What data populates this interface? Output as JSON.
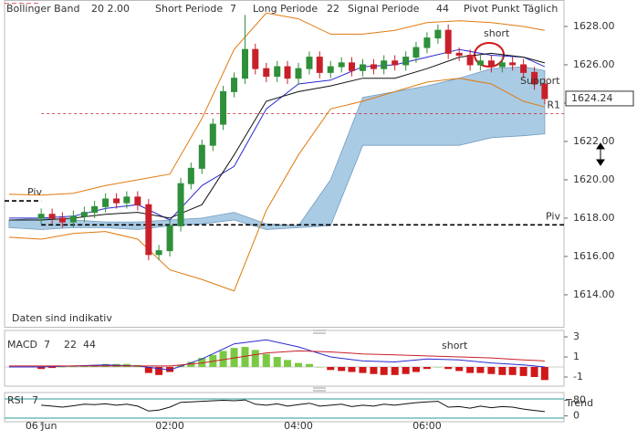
{
  "chart_data": [
    {
      "type": "candlestick",
      "indicators": [
        {
          "name": "Bollinger Band",
          "settings": "20  2.00",
          "color": "#e07a10"
        },
        {
          "name": "Short Periode",
          "settings": "7",
          "color": "#555555"
        },
        {
          "name": "Long Periode",
          "settings": "22",
          "color": "#555555"
        },
        {
          "name": "Signal Periode",
          "settings": "44",
          "color": "#555555"
        },
        {
          "name": "Pivot Punkt Täglich",
          "color": "#555555"
        }
      ],
      "note": "Daten sind indikativ",
      "annotations": [
        "short",
        "Support"
      ],
      "up_color": "#2f8f3a",
      "down_color": "#c8202a",
      "xlim": [
        -0.57,
        8.13
      ],
      "xticks": [
        {
          "value": 0,
          "label": "06 Jun"
        },
        {
          "value": 2,
          "label": "02:00"
        },
        {
          "value": 4,
          "label": "04:00"
        },
        {
          "value": 6,
          "label": "06:00"
        }
      ],
      "ylim": [
        1612.33,
        1629.38
      ],
      "yticks": [
        {
          "value": 1614,
          "label": "1614.00"
        },
        {
          "value": 1616,
          "label": "1616.00"
        },
        {
          "value": 1618,
          "label": "1618.00"
        },
        {
          "value": 1620,
          "label": "1620.00"
        },
        {
          "value": 1622,
          "label": "1622.00"
        },
        {
          "value": 1624,
          "label": "1624.00"
        },
        {
          "value": 1626,
          "label": "1626.00"
        },
        {
          "value": 1628,
          "label": "1628.00"
        }
      ],
      "x": [
        0,
        0.17,
        0.33,
        0.5,
        0.67,
        0.83,
        1,
        1.17,
        1.33,
        1.5,
        1.67,
        1.83,
        2,
        2.17,
        2.33,
        2.5,
        2.67,
        2.83,
        3,
        3.17,
        3.33,
        3.5,
        3.67,
        3.83,
        4,
        4.17,
        4.33,
        4.5,
        4.67,
        4.83,
        5,
        5.17,
        5.33,
        5.5,
        5.67,
        5.83,
        6,
        6.17,
        6.33,
        6.5,
        6.67,
        6.83,
        7,
        7.17,
        7.33,
        7.5,
        7.67,
        7.83
      ],
      "open": [
        1618.0,
        1618.2,
        1618.0,
        1617.8,
        1618.1,
        1618.3,
        1618.6,
        1619.0,
        1618.8,
        1619.1,
        1618.7,
        1616.1,
        1616.3,
        1617.6,
        1619.8,
        1620.6,
        1621.8,
        1622.9,
        1624.6,
        1625.3,
        1626.8,
        1625.8,
        1625.4,
        1625.9,
        1625.3,
        1625.8,
        1626.4,
        1625.6,
        1625.9,
        1626.1,
        1625.7,
        1626.0,
        1625.8,
        1626.2,
        1626.0,
        1626.4,
        1626.9,
        1627.4,
        1627.8,
        1626.6,
        1626.5,
        1626.0,
        1626.2,
        1625.9,
        1626.1,
        1626.0,
        1625.6,
        1625.0
      ],
      "high": [
        1618.5,
        1618.5,
        1618.3,
        1618.4,
        1618.6,
        1618.9,
        1619.3,
        1619.3,
        1619.4,
        1619.4,
        1619.0,
        1616.6,
        1617.9,
        1620.1,
        1620.9,
        1622.1,
        1623.2,
        1624.9,
        1625.6,
        1628.6,
        1627.1,
        1626.1,
        1626.2,
        1626.2,
        1626.1,
        1626.7,
        1626.7,
        1626.2,
        1626.4,
        1626.4,
        1626.3,
        1626.3,
        1626.5,
        1626.5,
        1626.7,
        1627.2,
        1627.7,
        1628.1,
        1628.1,
        1626.9,
        1626.8,
        1626.5,
        1626.5,
        1626.4,
        1626.4,
        1626.3,
        1625.9,
        1625.3
      ],
      "low": [
        1617.7,
        1617.7,
        1617.5,
        1617.5,
        1617.8,
        1618.0,
        1618.3,
        1618.5,
        1618.5,
        1618.4,
        1615.8,
        1615.8,
        1616.0,
        1617.3,
        1619.5,
        1620.3,
        1621.5,
        1622.6,
        1624.3,
        1625.0,
        1625.5,
        1625.1,
        1625.1,
        1625.0,
        1625.0,
        1625.5,
        1625.3,
        1625.3,
        1625.6,
        1625.4,
        1625.4,
        1625.5,
        1625.5,
        1625.7,
        1625.7,
        1626.1,
        1626.6,
        1627.1,
        1626.3,
        1626.2,
        1625.7,
        1625.7,
        1625.6,
        1625.6,
        1625.7,
        1625.3,
        1624.7,
        1623.94
      ],
      "close": [
        1618.2,
        1618.0,
        1617.8,
        1618.1,
        1618.3,
        1618.6,
        1619.0,
        1618.8,
        1619.1,
        1618.7,
        1616.1,
        1616.3,
        1617.6,
        1619.8,
        1620.6,
        1621.8,
        1622.9,
        1624.6,
        1625.3,
        1626.8,
        1625.8,
        1625.4,
        1625.9,
        1625.3,
        1625.8,
        1626.4,
        1625.6,
        1625.9,
        1626.1,
        1625.7,
        1626.0,
        1625.8,
        1626.2,
        1626.0,
        1626.4,
        1626.9,
        1627.4,
        1627.8,
        1626.6,
        1626.5,
        1626.0,
        1626.2,
        1625.9,
        1626.1,
        1626.0,
        1625.6,
        1625.0,
        1624.24
      ],
      "overlay_x": [
        -0.5,
        0,
        0.5,
        1,
        1.5,
        2,
        2.5,
        3,
        3.5,
        4,
        4.5,
        5,
        5.5,
        6,
        6.5,
        7,
        7.5,
        7.83
      ],
      "cloud": {
        "color": "#9cc3e0",
        "upper": [
          1617.9,
          1618.0,
          1617.9,
          1617.8,
          1617.8,
          1617.9,
          1618.0,
          1618.3,
          1617.7,
          1617.6,
          1620.0,
          1624.3,
          1624.6,
          1624.9,
          1625.3,
          1625.8,
          1625.9,
          1625.7
        ],
        "lower": [
          1617.5,
          1617.4,
          1617.5,
          1617.5,
          1617.4,
          1617.6,
          1617.7,
          1617.9,
          1617.4,
          1617.5,
          1617.6,
          1621.8,
          1621.8,
          1621.8,
          1621.8,
          1622.2,
          1622.3,
          1622.4
        ]
      },
      "overlays": [
        {
          "color": "#e07a10",
          "values": [
            1619.25,
            1619.2,
            1619.3,
            1619.7,
            1620.0,
            1620.3,
            1623.2,
            1626.8,
            1628.7,
            1628.4,
            1627.6,
            1627.6,
            1627.8,
            1628.2,
            1628.3,
            1628.2,
            1628.0,
            1627.8
          ]
        },
        {
          "color": "#e07a10",
          "values": [
            1617.0,
            1616.9,
            1617.2,
            1617.3,
            1616.9,
            1615.3,
            1614.8,
            1614.2,
            1618.4,
            1621.3,
            1623.7,
            1624.1,
            1624.6,
            1625.1,
            1625.3,
            1625.0,
            1624.1,
            1623.8
          ]
        },
        {
          "color": "#2a2ad0",
          "values": [
            1618.0,
            1618.0,
            1618.1,
            1618.5,
            1618.7,
            1617.9,
            1619.7,
            1620.7,
            1623.7,
            1625.0,
            1625.2,
            1625.9,
            1626.0,
            1626.4,
            1626.8,
            1626.5,
            1626.4,
            1625.9
          ]
        },
        {
          "color": "#111111",
          "values": [
            1617.9,
            1617.9,
            1618.0,
            1618.2,
            1618.3,
            1618.0,
            1618.7,
            1621.3,
            1624.1,
            1624.6,
            1624.9,
            1625.3,
            1625.3,
            1625.8,
            1626.4,
            1626.6,
            1626.4,
            1626.1
          ]
        }
      ],
      "pivots": [
        {
          "label": "Piv",
          "value": 1617.65,
          "color": "#000000"
        },
        {
          "label": "R1",
          "value": 1623.45,
          "color": "#c8202a"
        }
      ],
      "prev_pivots": [
        {
          "label": "Piv",
          "value": 1618.9,
          "color": "#000000"
        },
        {
          "label": "R1",
          "value": 1629.2,
          "color": "#c8202a"
        }
      ]
    },
    {
      "type": "macd",
      "label": "MACD",
      "settings": [
        "7",
        "22",
        "44"
      ],
      "annotation": "short",
      "ylim": [
        -1.91,
        3.64
      ],
      "yticks": [
        3,
        1,
        -1
      ],
      "pos_color": "#7ac943",
      "neg_color": "#d01818",
      "macd_color": "#2a2ad0",
      "signal_color": "#c8202a",
      "histogram": [
        -0.2,
        -0.1,
        0,
        0.1,
        0.1,
        0.2,
        0.3,
        0.3,
        0.3,
        0.2,
        -0.6,
        -0.8,
        -0.5,
        0.2,
        0.5,
        0.9,
        1.2,
        1.6,
        1.9,
        2.0,
        1.7,
        1.3,
        1.0,
        0.7,
        0.4,
        0.3,
        0,
        -0.3,
        -0.4,
        -0.5,
        -0.6,
        -0.7,
        -0.8,
        -0.8,
        -0.7,
        -0.5,
        -0.2,
        0,
        -0.2,
        -0.4,
        -0.6,
        -0.6,
        -0.7,
        -0.8,
        -0.8,
        -0.9,
        -1.0,
        -1.3
      ],
      "macd": [
        0,
        0,
        0.1,
        0.2,
        0.1,
        -0.3,
        0.8,
        2.3,
        2.7,
        2.0,
        1.0,
        0.6,
        0.5,
        0.8,
        0.7,
        0.4,
        0.2,
        0
      ],
      "signal": [
        0.1,
        0.1,
        0.1,
        0.1,
        0.1,
        0.1,
        0.4,
        0.9,
        1.4,
        1.6,
        1.5,
        1.3,
        1.2,
        1.1,
        1.0,
        0.9,
        0.7,
        0.6
      ]
    },
    {
      "type": "rsi",
      "label": "RSI",
      "settings": "7",
      "annotation": "Trend",
      "color": "#111111",
      "ylim": [
        -30,
        120
      ],
      "yticks": [
        80,
        0
      ],
      "values": [
        55,
        50,
        45,
        52,
        60,
        58,
        62,
        55,
        60,
        50,
        25,
        30,
        45,
        70,
        72,
        75,
        78,
        80,
        78,
        82,
        60,
        55,
        62,
        50,
        58,
        65,
        50,
        55,
        60,
        48,
        55,
        50,
        60,
        55,
        62,
        68,
        72,
        75,
        45,
        48,
        40,
        50,
        42,
        48,
        45,
        35,
        28,
        22
      ]
    }
  ]
}
